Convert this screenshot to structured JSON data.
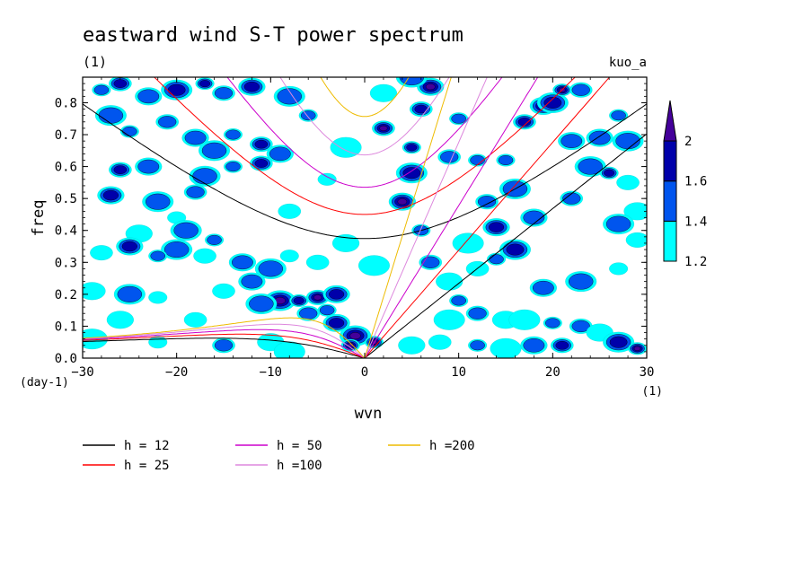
{
  "chart_data": {
    "type": "heatmap",
    "title": "eastward wind S-T power spectrum",
    "subtitle_left": "(1)",
    "subtitle_right": "kuo_a",
    "xlabel": "wvn",
    "ylabel": "freq",
    "x_unit": "(1)",
    "y_unit": "(day-1)",
    "xlim": [
      -30,
      30
    ],
    "ylim": [
      0,
      0.88
    ],
    "x_ticks": [
      "−30",
      "−20",
      "−10",
      "0",
      "10",
      "20",
      "30"
    ],
    "x_tick_values": [
      -30,
      -20,
      -10,
      0,
      10,
      20,
      30
    ],
    "y_ticks": [
      "0.0",
      "0.1",
      "0.2",
      "0.3",
      "0.4",
      "0.5",
      "0.6",
      "0.7",
      "0.8"
    ],
    "y_tick_values": [
      0,
      0.1,
      0.2,
      0.3,
      0.4,
      0.5,
      0.6,
      0.7,
      0.8
    ],
    "colorbar": {
      "levels": [
        "1.2",
        "1.4",
        "1.6",
        "2"
      ],
      "level_values": [
        1.2,
        1.4,
        1.6,
        2.0
      ],
      "colors": [
        "#00ffff",
        "#0055ee",
        "#0000aa",
        "#44009a"
      ]
    },
    "dispersion_curves": [
      {
        "label": "h = 12",
        "h": 12,
        "color": "#000000"
      },
      {
        "label": "h = 25",
        "h": 25,
        "color": "#ff0000"
      },
      {
        "label": "h = 50",
        "h": 50,
        "color": "#cc00cc"
      },
      {
        "label": "h =100",
        "h": 100,
        "color": "#dd88dd"
      },
      {
        "label": "h =200",
        "h": 200,
        "color": "#eebb00"
      }
    ],
    "power_blobs": [
      {
        "x": -28,
        "y": 0.84,
        "level": 1
      },
      {
        "x": -26,
        "y": 0.86,
        "level": 2
      },
      {
        "x": -23,
        "y": 0.82,
        "level": 1
      },
      {
        "x": -20,
        "y": 0.84,
        "level": 2
      },
      {
        "x": -17,
        "y": 0.86,
        "level": 2
      },
      {
        "x": -15,
        "y": 0.83,
        "level": 1
      },
      {
        "x": -12,
        "y": 0.85,
        "level": 2
      },
      {
        "x": -27,
        "y": 0.76,
        "level": 1
      },
      {
        "x": -25,
        "y": 0.71,
        "level": 1
      },
      {
        "x": -21,
        "y": 0.74,
        "level": 1
      },
      {
        "x": -18,
        "y": 0.69,
        "level": 1
      },
      {
        "x": -16,
        "y": 0.65,
        "level": 1
      },
      {
        "x": -14,
        "y": 0.7,
        "level": 1
      },
      {
        "x": -11,
        "y": 0.67,
        "level": 2
      },
      {
        "x": -9,
        "y": 0.64,
        "level": 1
      },
      {
        "x": -8,
        "y": 0.82,
        "level": 1
      },
      {
        "x": -6,
        "y": 0.76,
        "level": 1
      },
      {
        "x": -26,
        "y": 0.59,
        "level": 2
      },
      {
        "x": -23,
        "y": 0.6,
        "level": 1
      },
      {
        "x": -17,
        "y": 0.57,
        "level": 1
      },
      {
        "x": -14,
        "y": 0.6,
        "level": 1
      },
      {
        "x": -11,
        "y": 0.61,
        "level": 2
      },
      {
        "x": -27,
        "y": 0.51,
        "level": 2
      },
      {
        "x": -22,
        "y": 0.49,
        "level": 1
      },
      {
        "x": -20,
        "y": 0.44,
        "level": 0
      },
      {
        "x": -18,
        "y": 0.52,
        "level": 1
      },
      {
        "x": -24,
        "y": 0.39,
        "level": 0
      },
      {
        "x": -19,
        "y": 0.4,
        "level": 1
      },
      {
        "x": -16,
        "y": 0.37,
        "level": 1
      },
      {
        "x": -28,
        "y": 0.33,
        "level": 0
      },
      {
        "x": -25,
        "y": 0.35,
        "level": 2
      },
      {
        "x": -20,
        "y": 0.34,
        "level": 1
      },
      {
        "x": -22,
        "y": 0.32,
        "level": 1
      },
      {
        "x": -17,
        "y": 0.32,
        "level": 0
      },
      {
        "x": -13,
        "y": 0.3,
        "level": 1
      },
      {
        "x": -10,
        "y": 0.28,
        "level": 1
      },
      {
        "x": -8,
        "y": 0.32,
        "level": 0
      },
      {
        "x": -5,
        "y": 0.3,
        "level": 0
      },
      {
        "x": -29,
        "y": 0.21,
        "level": 0
      },
      {
        "x": -25,
        "y": 0.2,
        "level": 1
      },
      {
        "x": -22,
        "y": 0.19,
        "level": 0
      },
      {
        "x": -15,
        "y": 0.21,
        "level": 0
      },
      {
        "x": -12,
        "y": 0.24,
        "level": 1
      },
      {
        "x": -9,
        "y": 0.18,
        "level": 3
      },
      {
        "x": -7,
        "y": 0.18,
        "level": 2
      },
      {
        "x": -5,
        "y": 0.19,
        "level": 3
      },
      {
        "x": -3,
        "y": 0.2,
        "level": 2
      },
      {
        "x": -11,
        "y": 0.17,
        "level": 1
      },
      {
        "x": -4,
        "y": 0.15,
        "level": 1
      },
      {
        "x": -6,
        "y": 0.14,
        "level": 1
      },
      {
        "x": -3,
        "y": 0.11,
        "level": 2
      },
      {
        "x": -1,
        "y": 0.07,
        "level": 3
      },
      {
        "x": -1.5,
        "y": 0.04,
        "level": 3
      },
      {
        "x": -18,
        "y": 0.12,
        "level": 0
      },
      {
        "x": -26,
        "y": 0.12,
        "level": 0
      },
      {
        "x": -29,
        "y": 0.06,
        "level": 0
      },
      {
        "x": -22,
        "y": 0.05,
        "level": 0
      },
      {
        "x": -15,
        "y": 0.04,
        "level": 1
      },
      {
        "x": -10,
        "y": 0.05,
        "level": 0
      },
      {
        "x": -8,
        "y": 0.02,
        "level": 0
      },
      {
        "x": 1,
        "y": 0.05,
        "level": 3
      },
      {
        "x": 2,
        "y": 0.72,
        "level": 3
      },
      {
        "x": 4,
        "y": 0.49,
        "level": 3
      },
      {
        "x": 5,
        "y": 0.58,
        "level": 2
      },
      {
        "x": 5,
        "y": 0.66,
        "level": 2
      },
      {
        "x": 6,
        "y": 0.78,
        "level": 2
      },
      {
        "x": 7,
        "y": 0.85,
        "level": 3
      },
      {
        "x": 5,
        "y": 0.88,
        "level": 1
      },
      {
        "x": 6,
        "y": 0.4,
        "level": 1
      },
      {
        "x": 7,
        "y": 0.3,
        "level": 1
      },
      {
        "x": 9,
        "y": 0.24,
        "level": 0
      },
      {
        "x": 11,
        "y": 0.36,
        "level": 0
      },
      {
        "x": 12,
        "y": 0.62,
        "level": 1
      },
      {
        "x": 13,
        "y": 0.49,
        "level": 1
      },
      {
        "x": 14,
        "y": 0.41,
        "level": 2
      },
      {
        "x": 16,
        "y": 0.53,
        "level": 1
      },
      {
        "x": 15,
        "y": 0.62,
        "level": 1
      },
      {
        "x": 17,
        "y": 0.74,
        "level": 2
      },
      {
        "x": 19,
        "y": 0.79,
        "level": 2
      },
      {
        "x": 20,
        "y": 0.8,
        "level": 2
      },
      {
        "x": 21,
        "y": 0.84,
        "level": 3
      },
      {
        "x": 23,
        "y": 0.84,
        "level": 1
      },
      {
        "x": 22,
        "y": 0.68,
        "level": 1
      },
      {
        "x": 24,
        "y": 0.6,
        "level": 1
      },
      {
        "x": 26,
        "y": 0.58,
        "level": 2
      },
      {
        "x": 28,
        "y": 0.55,
        "level": 0
      },
      {
        "x": 25,
        "y": 0.69,
        "level": 1
      },
      {
        "x": 28,
        "y": 0.68,
        "level": 1
      },
      {
        "x": 27,
        "y": 0.76,
        "level": 1
      },
      {
        "x": 22,
        "y": 0.5,
        "level": 1
      },
      {
        "x": 18,
        "y": 0.44,
        "level": 1
      },
      {
        "x": 16,
        "y": 0.34,
        "level": 2
      },
      {
        "x": 14,
        "y": 0.31,
        "level": 1
      },
      {
        "x": 12,
        "y": 0.28,
        "level": 0
      },
      {
        "x": 19,
        "y": 0.22,
        "level": 1
      },
      {
        "x": 23,
        "y": 0.24,
        "level": 1
      },
      {
        "x": 27,
        "y": 0.28,
        "level": 0
      },
      {
        "x": 29,
        "y": 0.37,
        "level": 0
      },
      {
        "x": 29,
        "y": 0.46,
        "level": 0
      },
      {
        "x": 27,
        "y": 0.42,
        "level": 1
      },
      {
        "x": 10,
        "y": 0.18,
        "level": 1
      },
      {
        "x": 12,
        "y": 0.14,
        "level": 1
      },
      {
        "x": 15,
        "y": 0.12,
        "level": 0
      },
      {
        "x": 17,
        "y": 0.12,
        "level": 0
      },
      {
        "x": 20,
        "y": 0.11,
        "level": 1
      },
      {
        "x": 23,
        "y": 0.1,
        "level": 1
      },
      {
        "x": 25,
        "y": 0.08,
        "level": 0
      },
      {
        "x": 27,
        "y": 0.05,
        "level": 2
      },
      {
        "x": 29,
        "y": 0.03,
        "level": 3
      },
      {
        "x": 21,
        "y": 0.04,
        "level": 2
      },
      {
        "x": 18,
        "y": 0.04,
        "level": 1
      },
      {
        "x": 15,
        "y": 0.03,
        "level": 0
      },
      {
        "x": 12,
        "y": 0.04,
        "level": 1
      },
      {
        "x": 8,
        "y": 0.05,
        "level": 0
      },
      {
        "x": 5,
        "y": 0.04,
        "level": 0
      },
      {
        "x": 9,
        "y": 0.12,
        "level": 0
      },
      {
        "x": 10,
        "y": 0.75,
        "level": 1
      },
      {
        "x": 9,
        "y": 0.63,
        "level": 1
      },
      {
        "x": 2,
        "y": 0.83,
        "level": 0
      },
      {
        "x": -2,
        "y": 0.66,
        "level": 0
      },
      {
        "x": -4,
        "y": 0.56,
        "level": 0
      },
      {
        "x": -8,
        "y": 0.46,
        "level": 0
      },
      {
        "x": -2,
        "y": 0.36,
        "level": 0
      },
      {
        "x": 1,
        "y": 0.29,
        "level": 0
      }
    ]
  }
}
